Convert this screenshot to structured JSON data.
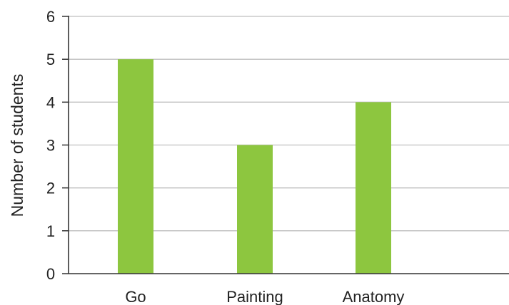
{
  "chart_data": {
    "type": "bar",
    "title": "",
    "xlabel": "",
    "ylabel": "Number of students",
    "categories": [
      "Go",
      "Painting",
      "Anatomy"
    ],
    "values": [
      5,
      3,
      4
    ],
    "ylim": [
      0,
      6
    ],
    "yticks": [
      "0",
      "1",
      "2",
      "3",
      "4",
      "5",
      "6"
    ],
    "grid": true,
    "legend": "none",
    "colors": {
      "bar": "#8dc63f",
      "grid": "#bfbfbf",
      "axis": "#333333"
    }
  }
}
